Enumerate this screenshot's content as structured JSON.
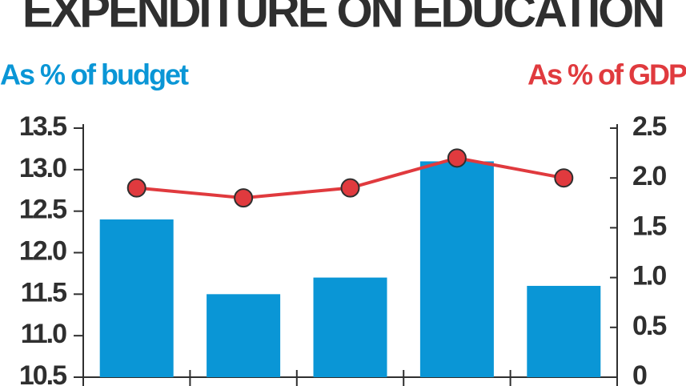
{
  "chart_data": {
    "type": "bar",
    "title": "EXPENDITURE ON EDUCATION",
    "y_label": "As % of budget",
    "y2_label": "As % of GDP",
    "categories": [
      null,
      null,
      null,
      null,
      null
    ],
    "series": [
      {
        "name": "As % of budget",
        "type": "bar",
        "color": "#0a96d6",
        "axis": "y",
        "values": [
          12.4,
          11.5,
          11.7,
          13.1,
          11.6
        ]
      },
      {
        "name": "As % of GDP",
        "type": "line",
        "color": "#e03a3e",
        "axis": "y2",
        "values": [
          1.9,
          1.8,
          1.9,
          2.2,
          2.0
        ]
      }
    ],
    "ylim": [
      10.5,
      13.5
    ],
    "yticks": [
      {
        "value": 10.5,
        "label": "10.5"
      },
      {
        "value": 11,
        "label": "11.0"
      },
      11.5,
      {
        "value": 12,
        "label": "12.0"
      },
      12.5,
      {
        "value": 13,
        "label": "13.0"
      },
      13.5
    ],
    "y2lim": [
      0,
      2.5
    ],
    "y2ticks": [
      0,
      0.5,
      {
        "value": 1,
        "label": "1.0"
      },
      1.5,
      {
        "value": 2,
        "label": "2.0"
      },
      2.5
    ],
    "grid": false
  }
}
